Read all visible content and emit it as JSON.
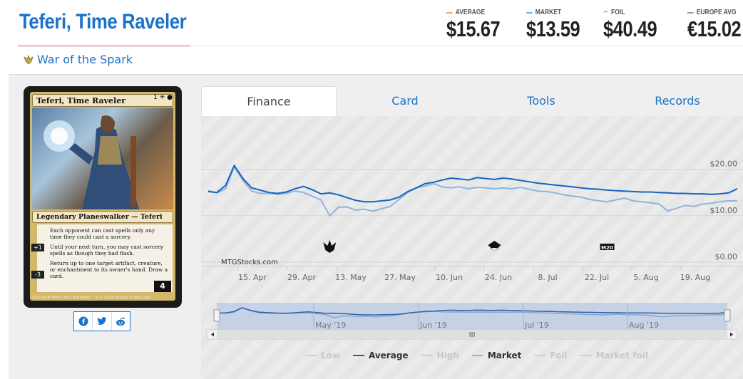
{
  "card": {
    "title": "Teferi, Time Raveler",
    "set_name": "War of the Spark",
    "name_line": "Teferi, Time Raveler",
    "mana_cost": "1 ✳ ●",
    "type_line": "Legendary Planeswalker — Teferi",
    "rules": [
      "Each opponent can cast spells only any time they could cast a sorcery.",
      "Until your next turn, you may cast sorcery spells as though they had flash.",
      "Return up to one target artifact, creature, or enchantment to its owner's hand. Draw a card."
    ],
    "loyalty_plus": "+1",
    "loyalty_minus": "-3",
    "loyalty_start": "4",
    "footer": "221/264 R  WAR • EN  Chris Rallis   ™ & © 2019 Wizards of the Coast"
  },
  "prices": [
    {
      "label": "AVERAGE",
      "value": "$15.67",
      "color": "#f0ad4e"
    },
    {
      "label": "MARKET",
      "value": "$13.59",
      "color": "#5bc0de"
    },
    {
      "label": "FOIL",
      "value": "$40.49",
      "color": "#f0ad4e"
    },
    {
      "label": "EUROPE AVG",
      "value": "€15.02",
      "color": "#999999"
    }
  ],
  "tabs": [
    "Finance",
    "Card",
    "Tools",
    "Records"
  ],
  "share": {
    "facebook": "facebook-icon",
    "twitter": "twitter-icon",
    "reddit": "reddit-icon"
  },
  "chart_data": {
    "type": "line",
    "watermark": "MTGStocks.com",
    "y_ticks": [
      "$20.00",
      "$10.00",
      "$0.00"
    ],
    "ylim": [
      0,
      23
    ],
    "x_ticks": [
      "15. Apr",
      "29. Apr",
      "13. May",
      "27. May",
      "10. Jun",
      "24. Jun",
      "8. Jul",
      "22. Jul",
      "5. Aug",
      "19. Aug"
    ],
    "navigator_ticks": [
      "May '19",
      "Jun '19",
      "Jul '19",
      "Aug '19"
    ],
    "series": [
      {
        "name": "Average",
        "color": "#1565c0",
        "values": [
          15.2,
          15.0,
          16.5,
          20.8,
          18.0,
          16.0,
          15.5,
          15.0,
          14.8,
          15.1,
          15.8,
          16.3,
          15.6,
          14.7,
          14.9,
          14.5,
          13.9,
          13.3,
          13.0,
          13.0,
          13.2,
          13.4,
          14.0,
          15.2,
          16.0,
          16.9,
          17.2,
          17.7,
          18.1,
          17.9,
          17.7,
          18.2,
          18.0,
          17.8,
          18.1,
          17.9,
          17.6,
          17.3,
          17.0,
          16.8,
          16.6,
          16.4,
          16.2,
          16.0,
          15.8,
          15.7,
          15.5,
          15.4,
          15.3,
          15.2,
          15.1,
          15.1,
          15.0,
          14.9,
          14.8,
          14.8,
          14.7,
          14.7,
          14.6,
          14.7,
          14.9,
          15.8
        ]
      },
      {
        "name": "Market",
        "color": "#8fb4dc",
        "values": [
          15.4,
          14.9,
          15.8,
          20.5,
          17.6,
          15.3,
          14.8,
          14.8,
          14.6,
          14.8,
          15.3,
          15.0,
          14.2,
          13.4,
          10.0,
          11.8,
          11.9,
          11.2,
          11.4,
          11.0,
          11.5,
          12.0,
          13.5,
          15.0,
          16.0,
          16.4,
          16.9,
          16.2,
          16.0,
          16.2,
          15.8,
          16.1,
          16.0,
          15.8,
          16.0,
          15.8,
          16.1,
          15.7,
          15.3,
          15.2,
          14.9,
          14.5,
          14.2,
          14.0,
          13.5,
          13.2,
          13.0,
          13.4,
          13.8,
          13.2,
          13.0,
          12.8,
          12.5,
          11.0,
          11.6,
          12.2,
          12.0,
          12.5,
          12.7,
          13.0,
          13.2,
          13.2
        ]
      }
    ],
    "legend": [
      {
        "name": "Low",
        "color": "#cfcfcf",
        "active": false
      },
      {
        "name": "Average",
        "color": "#1565c0",
        "active": true
      },
      {
        "name": "High",
        "color": "#cfcfcf",
        "active": false
      },
      {
        "name": "Market",
        "color": "#8fb4dc",
        "active": true
      },
      {
        "name": "Foil",
        "color": "#cfcfcf",
        "active": false
      },
      {
        "name": "Market foil",
        "color": "#cfcfcf",
        "active": false
      }
    ],
    "grid": true,
    "events": [
      {
        "icon": "war-of-the-spark-set-icon",
        "x_index": 14
      },
      {
        "icon": "modern-horizons-set-icon",
        "x_index": 33
      },
      {
        "icon": "core-set-2020-icon",
        "label": "M20",
        "x_index": 46
      }
    ]
  }
}
